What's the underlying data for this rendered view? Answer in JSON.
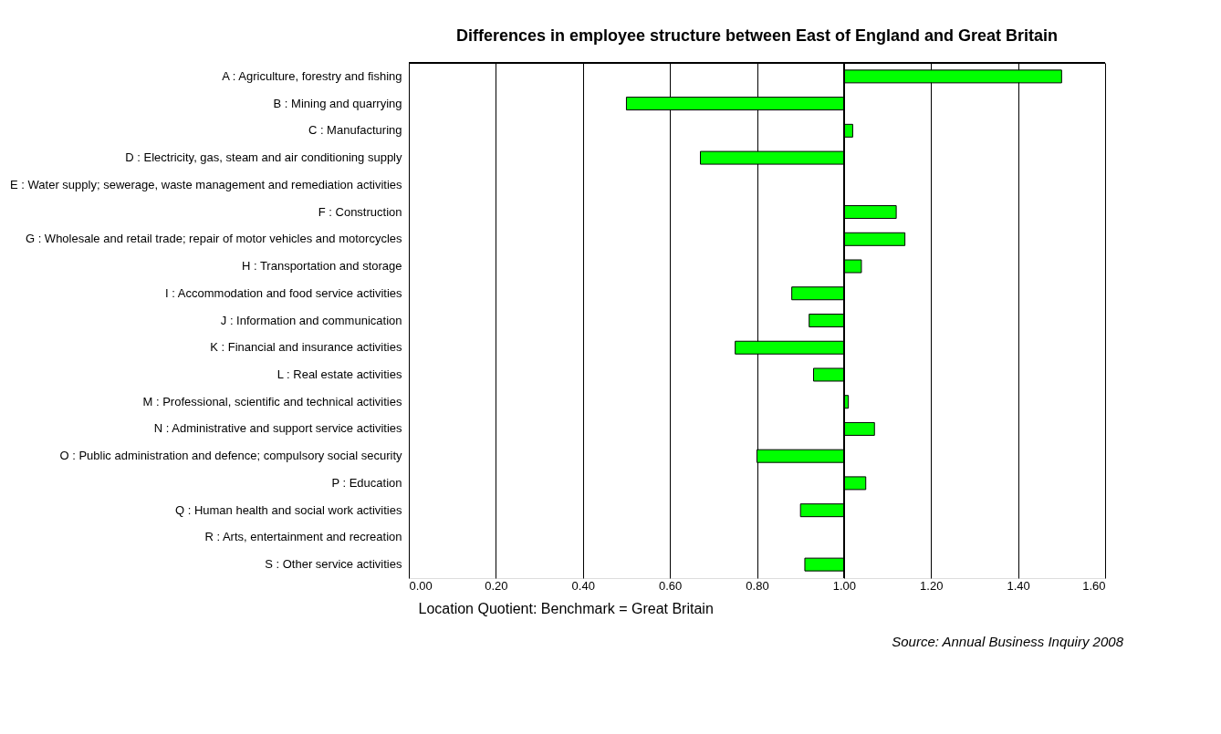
{
  "chart_data": {
    "type": "bar",
    "orientation": "horizontal",
    "title": "Differences in employee structure between East of England and Great Britain",
    "xlabel": "Location Quotient: Benchmark = Great Britain",
    "categories": [
      "A : Agriculture, forestry and fishing",
      "B : Mining and quarrying",
      "C : Manufacturing",
      "D : Electricity, gas, steam and air conditioning supply",
      "E : Water supply; sewerage, waste management and remediation activities",
      "F : Construction",
      "G : Wholesale and retail trade; repair of motor vehicles and motorcycles",
      "H : Transportation and storage",
      "I : Accommodation and food service activities",
      "J : Information and communication",
      "K : Financial and insurance activities",
      "L : Real estate activities",
      "M : Professional, scientific and technical activities",
      "N : Administrative and support service activities",
      "O : Public administration and defence; compulsory social security",
      "P : Education",
      "Q : Human health and social work activities",
      "R : Arts, entertainment and recreation",
      "S : Other service activities"
    ],
    "base": [
      1,
      1,
      1,
      1,
      null,
      1,
      1,
      1,
      1,
      1,
      1,
      1,
      1,
      1,
      1,
      1,
      1,
      null,
      1
    ],
    "values": [
      0.5,
      -0.5,
      0.02,
      -0.33,
      null,
      0.12,
      0.14,
      0.04,
      -0.12,
      -0.08,
      -0.25,
      -0.07,
      0.01,
      0.07,
      -0.2,
      0.05,
      -0.1,
      null,
      -0.09
    ],
    "color": "#00ff00",
    "xlim": [
      0,
      1.6
    ],
    "xticks": [
      {
        "value": 0,
        "label": "0.00"
      },
      {
        "value": 0.2,
        "label": "0.20"
      },
      {
        "value": 0.4,
        "label": "0.40"
      },
      {
        "value": 0.6,
        "label": "0.60"
      },
      {
        "value": 0.8,
        "label": "0.80"
      },
      {
        "value": 1,
        "label": "1.00"
      },
      {
        "value": 1.2,
        "label": "1.20"
      },
      {
        "value": 1.4,
        "label": "1.40"
      },
      {
        "value": 1.6,
        "label": "1.60"
      }
    ],
    "grid": "x",
    "annotations": [
      "Source: Annual Business Inquiry 2008"
    ]
  }
}
